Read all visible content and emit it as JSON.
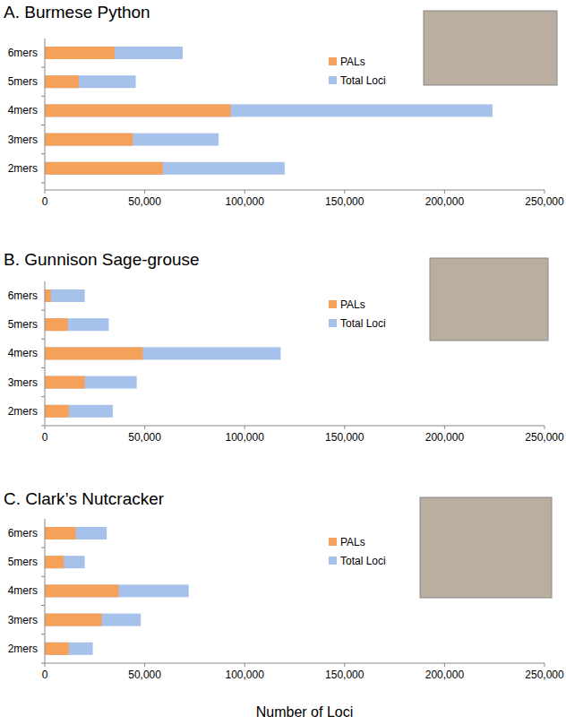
{
  "chart_data": [
    {
      "type": "bar",
      "title": "A. Burmese Python",
      "orientation": "horizontal",
      "stacked": false,
      "grid": false,
      "legend": "right",
      "categories": [
        "6mers",
        "5mers",
        "4mers",
        "3mers",
        "2mers"
      ],
      "series": [
        {
          "name": "PALs",
          "color": "#f5a15a",
          "values": [
            35000,
            17000,
            93000,
            44000,
            59000
          ]
        },
        {
          "name": "Total Loci",
          "color": "#a7c2ea",
          "values": [
            69000,
            45500,
            224000,
            87000,
            120000
          ]
        }
      ],
      "xlim": [
        0,
        250000
      ],
      "xticks": [
        0,
        {
          "value": 50000,
          "label": "50,000"
        },
        {
          "value": 100000,
          "label": "100,000"
        },
        {
          "value": 150000,
          "label": "150,000"
        },
        {
          "value": 200000,
          "label": "200,000"
        },
        {
          "value": 250000,
          "label": "250,000"
        }
      ]
    },
    {
      "type": "bar",
      "title": "B. Gunnison Sage-grouse",
      "orientation": "horizontal",
      "stacked": false,
      "grid": false,
      "legend": "right",
      "categories": [
        "6mers",
        "5mers",
        "4mers",
        "3mers",
        "2mers"
      ],
      "series": [
        {
          "name": "PALs",
          "color": "#f5a15a",
          "values": [
            3000,
            11500,
            49000,
            20000,
            12000
          ]
        },
        {
          "name": "Total Loci",
          "color": "#a7c2ea",
          "values": [
            20000,
            32000,
            118000,
            46000,
            34000
          ]
        }
      ],
      "xlim": [
        0,
        250000
      ],
      "xticks": [
        0,
        {
          "value": 50000,
          "label": "50,000"
        },
        {
          "value": 100000,
          "label": "100,000"
        },
        {
          "value": 150000,
          "label": "150,000"
        },
        {
          "value": 200000,
          "label": "200,000"
        },
        {
          "value": 250000,
          "label": "250,000"
        }
      ]
    },
    {
      "type": "bar",
      "title": "C. Clark’s Nutcracker",
      "orientation": "horizontal",
      "stacked": false,
      "grid": false,
      "legend": "right",
      "x_label": "Number of Loci",
      "categories": [
        "6mers",
        "5mers",
        "4mers",
        "3mers",
        "2mers"
      ],
      "series": [
        {
          "name": "PALs",
          "color": "#f5a15a",
          "values": [
            15500,
            9500,
            37000,
            28500,
            12000
          ]
        },
        {
          "name": "Total Loci",
          "color": "#a7c2ea",
          "values": [
            31000,
            20000,
            72000,
            48000,
            24000
          ]
        }
      ],
      "xlim": [
        0,
        250000
      ],
      "xticks": [
        0,
        {
          "value": 50000,
          "label": "50,000"
        },
        {
          "value": 100000,
          "label": "100,000"
        },
        {
          "value": 150000,
          "label": "150,000"
        },
        {
          "value": 200000,
          "label": "200,000"
        },
        {
          "value": 250000,
          "label": "250,000"
        }
      ]
    }
  ]
}
